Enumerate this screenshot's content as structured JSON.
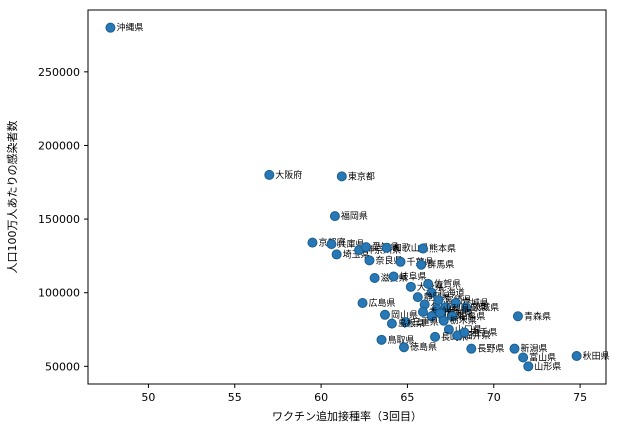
{
  "figure": {
    "background": "#ffffff",
    "axes_edge_color": "#000000"
  },
  "chart_data": {
    "type": "scatter",
    "title": "",
    "xlabel": "ワクチン追加接種率（3回目）",
    "ylabel": "人口100万人あたりの感染者数",
    "xlim": [
      46.5,
      76.5
    ],
    "ylim": [
      38000,
      292000
    ],
    "xticks": [
      50,
      55,
      60,
      65,
      70,
      75
    ],
    "yticks": [
      50000,
      100000,
      150000,
      200000,
      250000
    ],
    "grid": false,
    "legend": "none",
    "marker": {
      "shape": "circle",
      "fill": "#2878b5",
      "edge": "#1b5e8e",
      "radius": 4.5
    },
    "points": [
      {
        "label": "沖縄県",
        "x": 47.8,
        "y": 280000
      },
      {
        "label": "大阪府",
        "x": 57.0,
        "y": 180000
      },
      {
        "label": "東京都",
        "x": 61.2,
        "y": 179000
      },
      {
        "label": "福岡県",
        "x": 60.8,
        "y": 152000
      },
      {
        "label": "京都府",
        "x": 59.5,
        "y": 134000
      },
      {
        "label": "兵庫県",
        "x": 60.6,
        "y": 133000
      },
      {
        "label": "埼玉県",
        "x": 60.9,
        "y": 126000
      },
      {
        "label": "神奈川県",
        "x": 62.2,
        "y": 129000
      },
      {
        "label": "愛知県",
        "x": 62.6,
        "y": 131000
      },
      {
        "label": "和歌山県",
        "x": 63.8,
        "y": 130500
      },
      {
        "label": "熊本県",
        "x": 65.9,
        "y": 130000
      },
      {
        "label": "奈良県",
        "x": 62.8,
        "y": 122000
      },
      {
        "label": "千葉県",
        "x": 64.6,
        "y": 121000
      },
      {
        "label": "群馬県",
        "x": 65.8,
        "y": 119000
      },
      {
        "label": "滋賀県",
        "x": 63.1,
        "y": 110000
      },
      {
        "label": "岐阜県",
        "x": 64.2,
        "y": 111000
      },
      {
        "label": "大分県",
        "x": 65.2,
        "y": 104000
      },
      {
        "label": "佐賀県",
        "x": 66.2,
        "y": 106000
      },
      {
        "label": "北海道",
        "x": 66.4,
        "y": 100000
      },
      {
        "label": "静岡県",
        "x": 65.6,
        "y": 97000
      },
      {
        "label": "広島県",
        "x": 62.4,
        "y": 93000
      },
      {
        "label": "石川県",
        "x": 66.0,
        "y": 92000
      },
      {
        "label": "宮崎県",
        "x": 66.8,
        "y": 95000
      },
      {
        "label": "鹿児島県",
        "x": 67.2,
        "y": 90000
      },
      {
        "label": "宮城県",
        "x": 67.8,
        "y": 93000
      },
      {
        "label": "茨城県",
        "x": 68.4,
        "y": 90000
      },
      {
        "label": "山梨県",
        "x": 66.7,
        "y": 89000
      },
      {
        "label": "岡山県",
        "x": 63.7,
        "y": 85000
      },
      {
        "label": "香川県",
        "x": 65.9,
        "y": 87000
      },
      {
        "label": "愛媛県",
        "x": 66.4,
        "y": 84000
      },
      {
        "label": "高知県",
        "x": 66.9,
        "y": 86000
      },
      {
        "label": "福島県",
        "x": 67.6,
        "y": 84000
      },
      {
        "label": "栃木県",
        "x": 67.1,
        "y": 81000
      },
      {
        "label": "三重県",
        "x": 64.9,
        "y": 80000
      },
      {
        "label": "島根県",
        "x": 64.1,
        "y": 79000
      },
      {
        "label": "青森県",
        "x": 71.4,
        "y": 84000
      },
      {
        "label": "山口県",
        "x": 67.4,
        "y": 75000
      },
      {
        "label": "長崎県",
        "x": 66.6,
        "y": 70000
      },
      {
        "label": "福井県",
        "x": 67.9,
        "y": 71000
      },
      {
        "label": "岩手県",
        "x": 68.3,
        "y": 73000
      },
      {
        "label": "鳥取県",
        "x": 63.5,
        "y": 68000
      },
      {
        "label": "徳島県",
        "x": 64.8,
        "y": 63000
      },
      {
        "label": "長野県",
        "x": 68.7,
        "y": 62000
      },
      {
        "label": "新潟県",
        "x": 71.2,
        "y": 62000
      },
      {
        "label": "富山県",
        "x": 71.7,
        "y": 56000
      },
      {
        "label": "秋田県",
        "x": 74.8,
        "y": 57000
      },
      {
        "label": "山形県",
        "x": 72.0,
        "y": 50000
      }
    ]
  }
}
